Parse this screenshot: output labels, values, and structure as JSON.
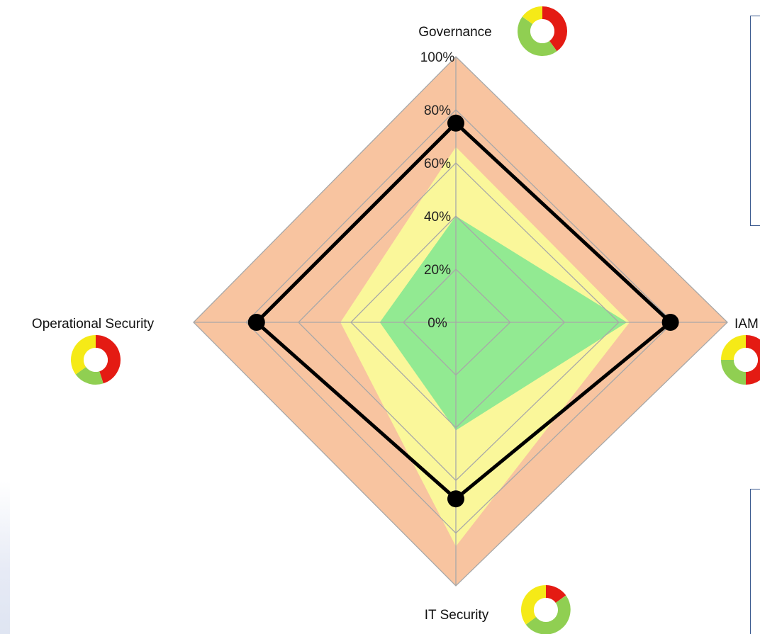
{
  "chart_data": {
    "type": "radar",
    "axes": [
      "Governance",
      "IAM",
      "IT Security",
      "Operational Security"
    ],
    "tick_labels": [
      "0%",
      "20%",
      "40%",
      "60%",
      "80%",
      "100%"
    ],
    "range": [
      0,
      100
    ],
    "grid": true,
    "series": [
      {
        "role": "band",
        "color": "#f8c4a0",
        "values": [
          100,
          100,
          100,
          100
        ]
      },
      {
        "role": "band",
        "color": "#faf79a",
        "values": [
          66,
          64,
          85,
          44
        ]
      },
      {
        "role": "band",
        "color": "#92ea92",
        "values": [
          40,
          63,
          41,
          29
        ]
      },
      {
        "role": "line",
        "color": "#000000",
        "values": [
          75,
          79,
          67,
          76
        ]
      }
    ],
    "status_rings": [
      {
        "axis": "Governance",
        "segments": [
          {
            "color": "#e41b13",
            "value": 40
          },
          {
            "color": "#90cf52",
            "value": 45
          },
          {
            "color": "#f5ea17",
            "value": 15
          }
        ]
      },
      {
        "axis": "IAM",
        "segments": [
          {
            "color": "#e41b13",
            "value": 50
          },
          {
            "color": "#90cf52",
            "value": 25
          },
          {
            "color": "#f5ea17",
            "value": 25
          }
        ]
      },
      {
        "axis": "IT Security",
        "segments": [
          {
            "color": "#e41b13",
            "value": 15
          },
          {
            "color": "#90cf52",
            "value": 50
          },
          {
            "color": "#f5ea17",
            "value": 35
          }
        ]
      },
      {
        "axis": "Operational Security",
        "segments": [
          {
            "color": "#e41b13",
            "value": 45
          },
          {
            "color": "#90cf52",
            "value": 20
          },
          {
            "color": "#f5ea17",
            "value": 35
          }
        ]
      }
    ],
    "grid_color": "#a8a8a8"
  },
  "labels": {
    "governance": "Governance",
    "iam": "IAM",
    "it_security": "IT Security",
    "operational_security": "Operational Security"
  }
}
